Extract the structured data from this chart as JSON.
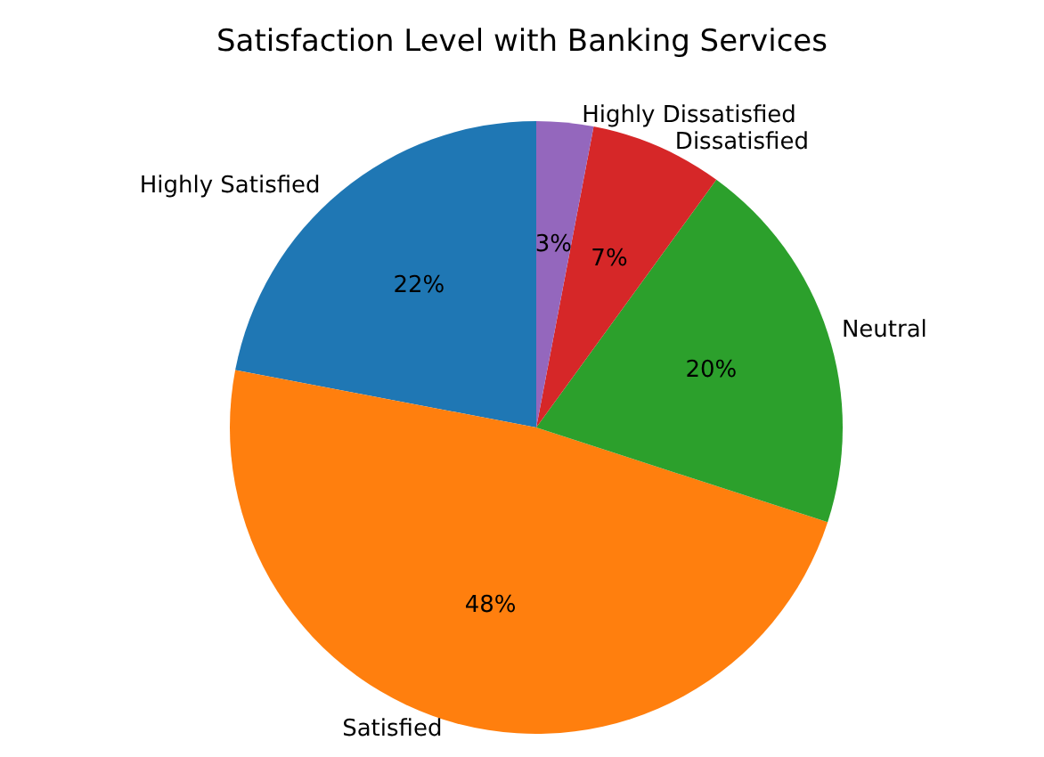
{
  "chart_data": {
    "type": "pie",
    "title": "Satisfaction Level with Banking Services",
    "categories": [
      "Highly Satisfied",
      "Satisfied",
      "Neutral",
      "Dissatisfied",
      "Highly Dissatisfied"
    ],
    "values": [
      22,
      48,
      20,
      7,
      3
    ],
    "colors": [
      "#1f77b4",
      "#ff7f0e",
      "#2ca02c",
      "#d62728",
      "#9467bd"
    ],
    "value_labels": [
      "22%",
      "48%",
      "20%",
      "7%",
      "3%"
    ]
  }
}
